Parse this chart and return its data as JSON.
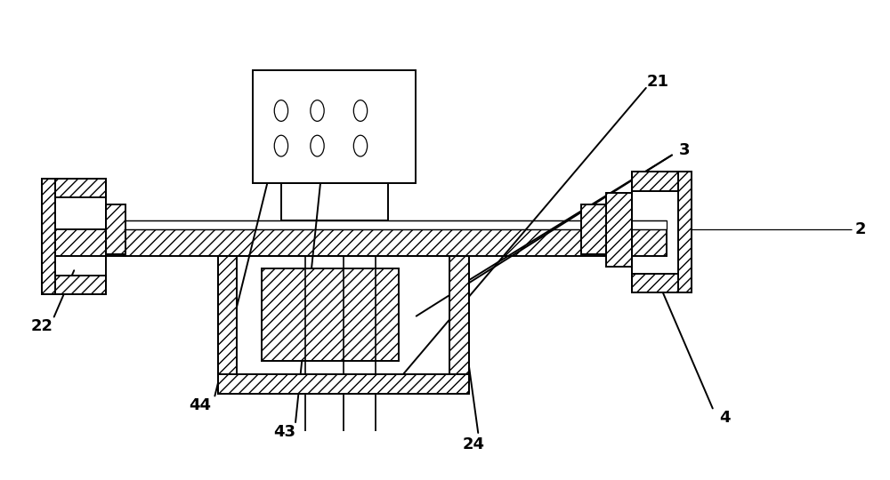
{
  "bg_color": "#ffffff",
  "lc": "#000000",
  "lw": 1.4,
  "thin_lw": 0.9,
  "label_fs": 13,
  "label_fw": "bold",
  "hatch_density": "///",
  "fig_w": 10.0,
  "fig_h": 5.4,
  "xlim": [
    0,
    10
  ],
  "ylim": [
    0,
    5.4
  ]
}
